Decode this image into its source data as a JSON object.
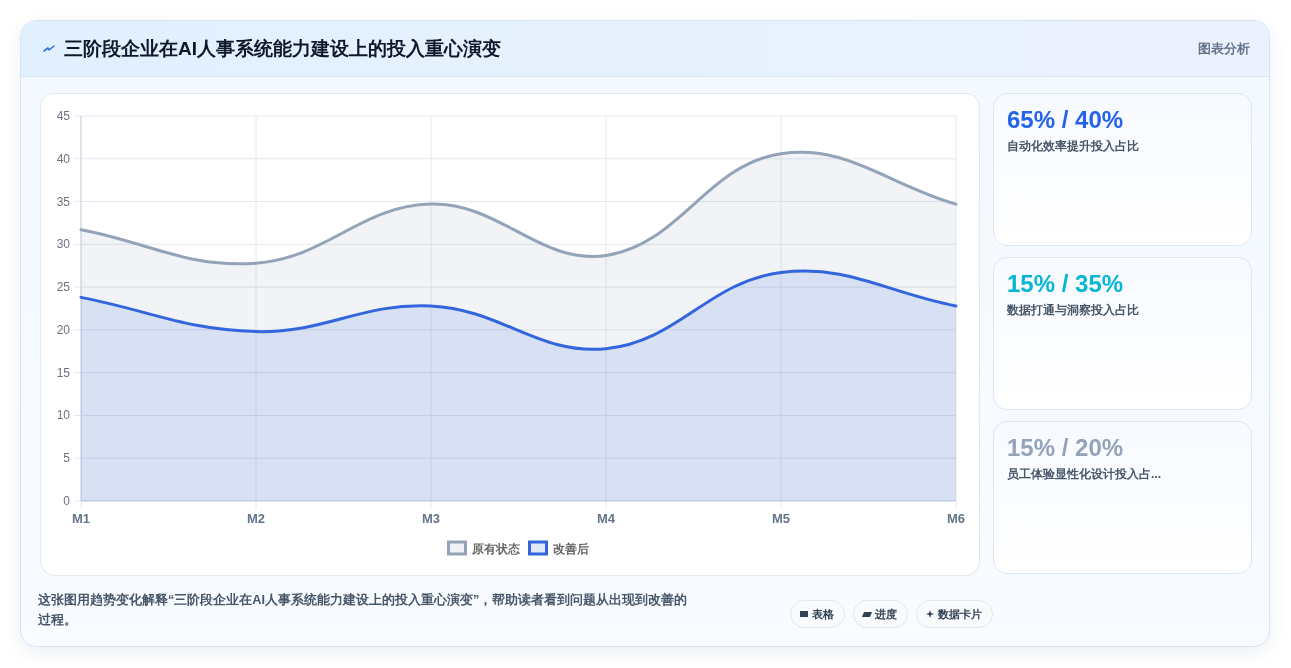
{
  "chart_data": [
    {
      "type": "area",
      "title": "三阶段企业在AI人事系统能力建设上的投入重心演变",
      "categories": [
        "M1",
        "M2",
        "M3",
        "M4",
        "M5",
        "M6"
      ],
      "series": [
        {
          "name": "原有状态",
          "color": "#94a3b8",
          "values": [
            31.7,
            27.8,
            34.7,
            28.7,
            40.6,
            34.7
          ]
        },
        {
          "name": "改善后",
          "color": "#3366dd",
          "values": [
            23.8,
            19.8,
            22.8,
            17.8,
            26.7,
            22.8
          ]
        }
      ],
      "ylim": [
        0,
        45
      ],
      "yticks": [
        0,
        5,
        10,
        15,
        20,
        25,
        30,
        35,
        40,
        45
      ],
      "grid": true,
      "legend": "bottom",
      "annotations": [
        "图表分析",
        "这张图用趋势变化解释“三阶段企业在AI人事系统能力建设上的投入重心演变”，帮助读者看到问题从出现到改善的过程。",
        "表格",
        "进度",
        "数据卡片"
      ]
    },
    {
      "type": "other",
      "title": "65% / 40%",
      "subtitle": "自动化效率提升投入占比",
      "color": "#2563eb"
    },
    {
      "type": "other",
      "title": "15% / 35%",
      "subtitle": "数据打通与洞察投入占比",
      "color": "#06b6d4"
    },
    {
      "type": "other",
      "title": "15% / 20%",
      "subtitle": "员工体验显性化设计投入占...",
      "color": "#94a3b8"
    }
  ]
}
